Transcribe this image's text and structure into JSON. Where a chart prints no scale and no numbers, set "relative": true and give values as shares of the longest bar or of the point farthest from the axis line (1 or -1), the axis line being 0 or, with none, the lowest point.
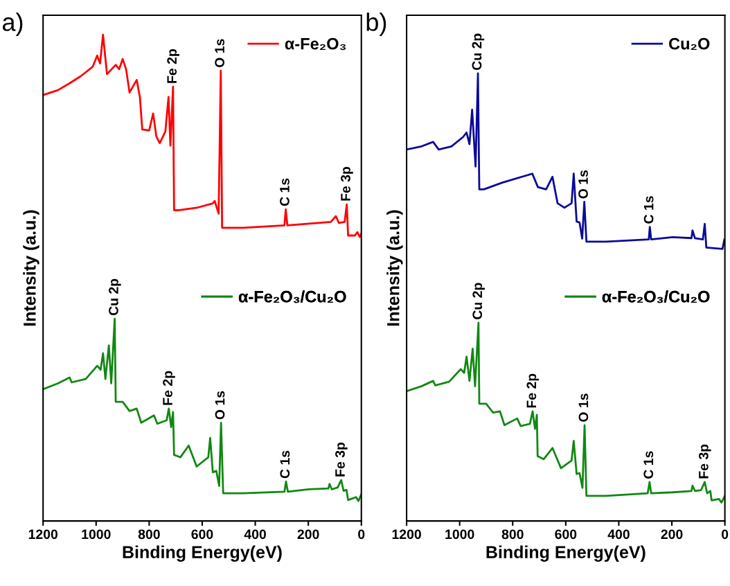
{
  "chart_data": [
    {
      "type": "line",
      "title": "a)",
      "xlabel": "Binding Energy(eV)",
      "ylabel": "Intensity (a.u.)",
      "relative": true,
      "xlim": [
        1200,
        0
      ],
      "xticks": [
        1200,
        1000,
        800,
        600,
        400,
        200,
        0
      ],
      "legend": "top right",
      "grid": false,
      "marker": "none",
      "line_style": "solid",
      "series": [
        {
          "name": "α-Fe₂O₃",
          "color": "#ff0000",
          "x": [
            1200,
            1144,
            1100,
            1057,
            1013,
            996,
            985,
            974,
            959,
            926,
            913,
            900,
            887,
            874,
            847,
            835,
            826,
            800,
            785,
            773,
            760,
            739,
            727,
            720,
            710,
            706,
            691,
            621,
            560,
            553,
            538,
            530,
            525,
            447,
            290,
            285,
            279,
            115,
            96,
            85,
            63,
            55,
            50,
            24,
            15,
            6,
            0
          ],
          "values": [
            0.876,
            0.886,
            0.9,
            0.915,
            0.934,
            0.957,
            0.941,
            1.0,
            0.919,
            0.938,
            0.929,
            0.95,
            0.929,
            0.881,
            0.907,
            0.872,
            0.805,
            0.803,
            0.838,
            0.791,
            0.777,
            0.801,
            0.872,
            0.772,
            0.893,
            0.639,
            0.639,
            0.644,
            0.653,
            0.658,
            0.632,
            0.926,
            0.603,
            0.603,
            0.608,
            0.641,
            0.608,
            0.615,
            0.627,
            0.613,
            0.615,
            0.651,
            0.587,
            0.587,
            0.594,
            0.584,
            0.591
          ]
        },
        {
          "name": "α-Fe₂O₃/Cu₂O",
          "color": "#118811",
          "x": [
            1200,
            1144,
            1100,
            1092,
            1039,
            996,
            983,
            974,
            965,
            952,
            943,
            930,
            926,
            900,
            874,
            847,
            830,
            782,
            769,
            734,
            726,
            717,
            710,
            706,
            682,
            651,
            621,
            577,
            570,
            560,
            547,
            536,
            529,
            521,
            447,
            290,
            284,
            277,
            198,
            124,
            120,
            111,
            89,
            76,
            67,
            56,
            50,
            20,
            11,
            0
          ],
          "values": [
            0.271,
            0.283,
            0.295,
            0.285,
            0.292,
            0.319,
            0.311,
            0.345,
            0.292,
            0.361,
            0.283,
            0.416,
            0.245,
            0.245,
            0.226,
            0.231,
            0.202,
            0.217,
            0.2,
            0.207,
            0.231,
            0.193,
            0.224,
            0.136,
            0.131,
            0.155,
            0.112,
            0.131,
            0.171,
            0.1,
            0.103,
            0.072,
            0.202,
            0.057,
            0.057,
            0.06,
            0.081,
            0.06,
            0.065,
            0.067,
            0.076,
            0.065,
            0.069,
            0.084,
            0.062,
            0.064,
            0.043,
            0.049,
            0.041,
            0.055
          ]
        }
      ],
      "annotations": [
        {
          "text": "Fe 2p",
          "x": 710,
          "y": 0.893
        },
        {
          "text": "O 1s",
          "x": 530,
          "y": 0.926
        },
        {
          "text": "C 1s",
          "x": 285,
          "y": 0.641
        },
        {
          "text": "Fe 3p",
          "x": 55,
          "y": 0.651
        },
        {
          "text": "Cu 2p",
          "x": 930,
          "y": 0.416
        },
        {
          "text": "Fe 2p",
          "x": 726,
          "y": 0.231
        },
        {
          "text": "O 1s",
          "x": 529,
          "y": 0.202
        },
        {
          "text": "C 1s",
          "x": 284,
          "y": 0.081
        },
        {
          "text": "Fe 3p",
          "x": 76,
          "y": 0.084
        }
      ]
    },
    {
      "type": "line",
      "title": "b)",
      "xlabel": "Binding Energy(eV)",
      "ylabel": "Intensity (a.u.)",
      "relative": true,
      "xlim": [
        1200,
        0
      ],
      "xticks": [
        1200,
        1000,
        800,
        600,
        400,
        200,
        0
      ],
      "legend": "top right",
      "grid": false,
      "marker": "none",
      "line_style": "solid",
      "series": [
        {
          "name": "Cu₂O",
          "color": "#0a0a9a",
          "x": [
            1200,
            1144,
            1100,
            1079,
            1031,
            987,
            974,
            963,
            953,
            940,
            931,
            926,
            909,
            839,
            726,
            705,
            674,
            650,
            631,
            605,
            578,
            570,
            559,
            548,
            538,
            530,
            522,
            448,
            287,
            283,
            278,
            197,
            126,
            122,
            113,
            83,
            76,
            70,
            9,
            2,
            0
          ],
          "values": [
            0.83,
            0.837,
            0.847,
            0.83,
            0.837,
            0.858,
            0.868,
            0.842,
            0.919,
            0.792,
            1.0,
            0.741,
            0.741,
            0.756,
            0.776,
            0.746,
            0.741,
            0.769,
            0.71,
            0.7,
            0.71,
            0.776,
            0.669,
            0.667,
            0.631,
            0.713,
            0.624,
            0.624,
            0.629,
            0.657,
            0.629,
            0.634,
            0.632,
            0.649,
            0.632,
            0.629,
            0.664,
            0.611,
            0.608,
            0.629,
            0.618
          ]
        },
        {
          "name": "α-Fe₂O₃/Cu₂O",
          "color": "#118811",
          "x": [
            1200,
            1144,
            1100,
            1092,
            1040,
            996,
            983,
            974,
            963,
            951,
            942,
            929,
            926,
            900,
            874,
            848,
            831,
            783,
            770,
            735,
            725,
            716,
            709,
            706,
            683,
            650,
            618,
            578,
            570,
            559,
            548,
            537,
            529,
            522,
            448,
            291,
            284,
            278,
            197,
            126,
            122,
            113,
            90,
            76,
            67,
            55,
            50,
            22,
            13,
            0
          ],
          "values": [
            0.29,
            0.301,
            0.313,
            0.303,
            0.311,
            0.339,
            0.331,
            0.367,
            0.313,
            0.385,
            0.301,
            0.443,
            0.262,
            0.262,
            0.242,
            0.245,
            0.214,
            0.229,
            0.212,
            0.217,
            0.245,
            0.206,
            0.237,
            0.145,
            0.138,
            0.163,
            0.118,
            0.135,
            0.179,
            0.105,
            0.107,
            0.074,
            0.214,
            0.056,
            0.056,
            0.062,
            0.087,
            0.062,
            0.064,
            0.067,
            0.079,
            0.067,
            0.069,
            0.087,
            0.062,
            0.067,
            0.046,
            0.049,
            0.041,
            0.056
          ]
        }
      ],
      "annotations": [
        {
          "text": "Cu 2p",
          "x": 931,
          "y": 1.0
        },
        {
          "text": "O 1s",
          "x": 530,
          "y": 0.713
        },
        {
          "text": "C 1s",
          "x": 283,
          "y": 0.657
        },
        {
          "text": "Cu 2p",
          "x": 929,
          "y": 0.443
        },
        {
          "text": "Fe 2p",
          "x": 725,
          "y": 0.245
        },
        {
          "text": "O 1s",
          "x": 529,
          "y": 0.214
        },
        {
          "text": "C 1s",
          "x": 284,
          "y": 0.087
        },
        {
          "text": "Fe 3p",
          "x": 76,
          "y": 0.087
        }
      ]
    }
  ]
}
